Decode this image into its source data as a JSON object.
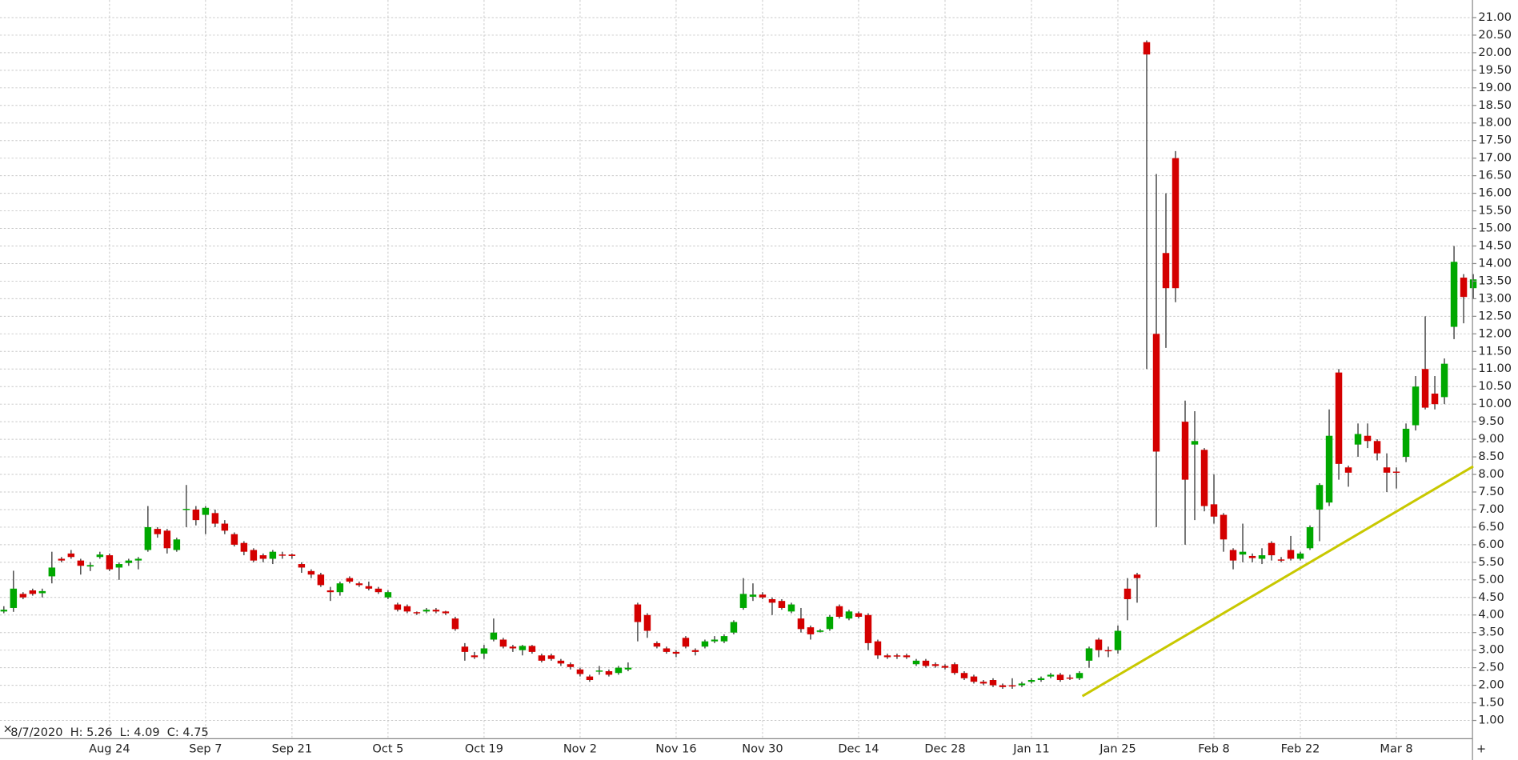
{
  "chart_data": {
    "type": "candlestick",
    "status": "8/7/2020  H: 5.26  L: 4.09  C: 4.75",
    "categories": [
      null,
      null,
      null,
      null,
      null,
      null,
      null,
      null,
      null,
      null,
      null,
      "Aug 24",
      null,
      null,
      null,
      null,
      null,
      null,
      null,
      null,
      null,
      "Sep 7",
      null,
      null,
      null,
      null,
      null,
      null,
      null,
      null,
      "Sep 21",
      null,
      null,
      null,
      null,
      null,
      null,
      null,
      null,
      null,
      "Oct 5",
      null,
      null,
      null,
      null,
      null,
      null,
      null,
      null,
      null,
      "Oct 19",
      null,
      null,
      null,
      null,
      null,
      null,
      null,
      null,
      null,
      "Nov 2",
      null,
      null,
      null,
      null,
      null,
      null,
      null,
      null,
      null,
      "Nov 16",
      null,
      null,
      null,
      null,
      null,
      null,
      null,
      null,
      "Nov 30",
      null,
      null,
      null,
      null,
      null,
      null,
      null,
      null,
      null,
      "Dec 14",
      null,
      null,
      null,
      null,
      null,
      null,
      null,
      null,
      "Dec 28",
      null,
      null,
      null,
      null,
      null,
      null,
      null,
      null,
      "Jan 11",
      null,
      null,
      null,
      null,
      null,
      null,
      null,
      null,
      "Jan 25",
      null,
      null,
      null,
      null,
      null,
      null,
      null,
      null,
      null,
      "Feb 8",
      null,
      null,
      null,
      null,
      null,
      null,
      null,
      null,
      "Feb 22",
      null,
      null,
      null,
      null,
      null,
      null,
      null,
      null,
      null,
      "Mar 8",
      null,
      null,
      null,
      null,
      null,
      null,
      null,
      null
    ],
    "open": [
      4.1,
      4.2,
      4.6,
      4.7,
      4.62,
      5.1,
      5.6,
      5.75,
      5.55,
      5.38,
      5.65,
      5.7,
      5.35,
      5.48,
      5.55,
      5.85,
      6.45,
      6.4,
      5.85,
      7.0,
      7.0,
      6.85,
      6.9,
      6.6,
      6.3,
      6.05,
      5.85,
      5.7,
      5.6,
      5.72,
      5.72,
      5.45,
      5.25,
      5.15,
      4.7,
      4.65,
      5.05,
      4.9,
      4.82,
      4.75,
      4.5,
      4.3,
      4.25,
      4.08,
      4.1,
      4.15,
      4.1,
      3.9,
      3.1,
      2.85,
      2.9,
      3.3,
      3.3,
      3.1,
      3.0,
      3.12,
      2.85,
      2.85,
      2.7,
      2.6,
      2.45,
      2.25,
      2.4,
      2.4,
      2.35,
      2.45,
      4.3,
      4.0,
      3.2,
      3.05,
      2.95,
      3.35,
      3.0,
      3.1,
      3.25,
      3.25,
      3.5,
      4.2,
      4.52,
      4.58,
      4.45,
      4.4,
      4.1,
      3.9,
      3.65,
      3.52,
      3.6,
      4.25,
      3.9,
      4.05,
      4.0,
      3.25,
      2.85,
      2.85,
      2.85,
      2.6,
      2.7,
      2.6,
      2.55,
      2.6,
      2.35,
      2.25,
      2.1,
      2.15,
      2.0,
      2.0,
      2.0,
      2.1,
      2.15,
      2.25,
      2.3,
      2.22,
      2.2,
      2.7,
      3.3,
      3.0,
      3.0,
      4.75,
      5.15,
      20.3,
      12.0,
      14.3,
      17.0,
      9.5,
      8.85,
      8.7,
      7.15,
      6.85,
      5.85,
      5.72,
      5.68,
      5.6,
      6.05,
      5.58,
      5.85,
      5.6,
      5.9,
      7.0,
      7.2,
      10.9,
      8.2,
      8.85,
      9.1,
      8.95,
      8.2,
      8.08,
      8.5,
      9.4,
      11.0,
      10.3,
      10.2,
      12.2,
      13.6,
      13.3
    ],
    "high": [
      4.25,
      5.26,
      4.65,
      4.75,
      4.75,
      5.8,
      5.65,
      5.85,
      5.6,
      5.5,
      5.8,
      5.75,
      5.5,
      5.6,
      5.65,
      7.1,
      6.5,
      6.45,
      6.2,
      7.7,
      7.1,
      7.1,
      7.0,
      6.7,
      6.35,
      6.1,
      5.9,
      5.75,
      5.85,
      5.8,
      5.75,
      5.5,
      5.3,
      5.2,
      4.8,
      4.95,
      5.1,
      4.95,
      4.95,
      4.8,
      4.7,
      4.35,
      4.3,
      4.1,
      4.2,
      4.2,
      4.12,
      3.95,
      3.2,
      2.95,
      3.15,
      3.9,
      3.35,
      3.15,
      3.15,
      3.15,
      2.9,
      2.9,
      2.75,
      2.65,
      2.5,
      2.3,
      2.55,
      2.45,
      2.55,
      2.65,
      4.35,
      4.05,
      3.25,
      3.1,
      3.0,
      3.4,
      3.05,
      3.3,
      3.4,
      3.45,
      3.85,
      5.05,
      4.9,
      4.65,
      4.5,
      4.45,
      4.35,
      4.2,
      3.7,
      3.6,
      4.0,
      4.3,
      4.15,
      4.1,
      4.05,
      3.3,
      2.9,
      2.9,
      2.9,
      2.75,
      2.75,
      2.65,
      2.6,
      2.65,
      2.4,
      2.3,
      2.15,
      2.2,
      2.05,
      2.2,
      2.1,
      2.2,
      2.25,
      2.35,
      2.35,
      2.3,
      2.4,
      3.1,
      3.35,
      3.1,
      3.7,
      5.05,
      5.2,
      20.35,
      16.55,
      16.0,
      17.2,
      10.1,
      9.8,
      8.75,
      8.0,
      6.9,
      5.9,
      6.6,
      5.75,
      5.9,
      6.1,
      5.65,
      6.25,
      5.8,
      6.55,
      7.75,
      9.85,
      11.0,
      8.25,
      9.45,
      9.45,
      9.0,
      8.6,
      8.2,
      9.45,
      10.8,
      12.5,
      10.8,
      11.3,
      14.5,
      13.7,
      13.7
    ],
    "low": [
      4.05,
      4.09,
      4.45,
      4.55,
      4.5,
      4.9,
      5.5,
      5.6,
      5.15,
      5.25,
      5.6,
      5.25,
      5.0,
      5.4,
      5.3,
      5.8,
      6.2,
      5.75,
      5.8,
      6.5,
      6.55,
      6.3,
      6.5,
      6.3,
      5.95,
      5.7,
      5.5,
      5.5,
      5.45,
      5.6,
      5.6,
      5.2,
      5.05,
      4.8,
      4.4,
      4.55,
      4.9,
      4.8,
      4.7,
      4.6,
      4.45,
      4.1,
      4.05,
      4.0,
      4.05,
      4.05,
      4.0,
      3.55,
      2.7,
      2.75,
      2.75,
      3.25,
      3.05,
      2.95,
      2.85,
      2.9,
      2.65,
      2.7,
      2.55,
      2.45,
      2.25,
      2.1,
      2.3,
      2.25,
      2.3,
      2.4,
      3.25,
      3.35,
      3.05,
      2.9,
      2.8,
      3.05,
      2.85,
      3.05,
      3.2,
      3.2,
      3.45,
      4.15,
      4.4,
      4.45,
      4.0,
      4.15,
      4.05,
      3.5,
      3.3,
      3.5,
      3.55,
      3.9,
      3.85,
      3.9,
      3.0,
      2.75,
      2.75,
      2.75,
      2.75,
      2.55,
      2.5,
      2.5,
      2.45,
      2.3,
      2.15,
      2.05,
      2.0,
      1.95,
      1.9,
      1.9,
      1.95,
      2.05,
      2.1,
      2.2,
      2.1,
      2.15,
      2.15,
      2.5,
      2.8,
      2.8,
      2.9,
      3.85,
      4.35,
      11.0,
      6.5,
      11.6,
      12.9,
      6.0,
      6.7,
      6.95,
      6.6,
      5.8,
      5.3,
      5.5,
      5.5,
      5.45,
      5.55,
      5.5,
      5.55,
      5.55,
      5.85,
      6.1,
      7.1,
      7.85,
      7.65,
      8.5,
      8.75,
      8.4,
      7.5,
      7.6,
      8.35,
      9.25,
      9.85,
      9.85,
      10.0,
      11.85,
      12.3,
      13.0
    ],
    "close": [
      4.15,
      4.75,
      4.5,
      4.6,
      4.68,
      5.35,
      5.55,
      5.65,
      5.4,
      5.42,
      5.72,
      5.3,
      5.45,
      5.55,
      5.6,
      6.5,
      6.3,
      5.9,
      6.15,
      7.02,
      6.7,
      7.05,
      6.6,
      6.4,
      6.0,
      5.8,
      5.55,
      5.6,
      5.8,
      5.7,
      5.68,
      5.35,
      5.15,
      4.85,
      4.65,
      4.9,
      4.95,
      4.85,
      4.75,
      4.65,
      4.65,
      4.15,
      4.1,
      4.05,
      4.15,
      4.1,
      4.05,
      3.6,
      2.95,
      2.8,
      3.05,
      3.5,
      3.1,
      3.05,
      3.12,
      2.95,
      2.7,
      2.75,
      2.62,
      2.52,
      2.32,
      2.15,
      2.42,
      2.3,
      2.5,
      2.5,
      3.8,
      3.55,
      3.1,
      2.95,
      2.9,
      3.1,
      2.95,
      3.25,
      3.3,
      3.4,
      3.8,
      4.6,
      4.58,
      4.5,
      4.35,
      4.2,
      4.3,
      3.6,
      3.45,
      3.56,
      3.95,
      3.95,
      4.1,
      3.95,
      3.2,
      2.85,
      2.8,
      2.82,
      2.8,
      2.7,
      2.55,
      2.55,
      2.5,
      2.35,
      2.2,
      2.1,
      2.05,
      2.0,
      1.95,
      1.98,
      2.05,
      2.15,
      2.2,
      2.3,
      2.15,
      2.2,
      2.35,
      3.05,
      3.0,
      2.98,
      3.55,
      4.45,
      5.05,
      19.95,
      8.65,
      13.3,
      13.3,
      7.85,
      8.95,
      7.1,
      6.8,
      6.15,
      5.55,
      5.8,
      5.62,
      5.7,
      5.7,
      5.55,
      5.6,
      5.75,
      6.5,
      7.7,
      9.1,
      8.3,
      8.05,
      9.15,
      8.95,
      8.6,
      8.05,
      8.05,
      9.3,
      10.5,
      9.9,
      10.0,
      11.15,
      14.05,
      13.05,
      13.55
    ],
    "up_color": "#00a800",
    "down_color": "#d40000",
    "trendline": {
      "color": "#c8c800",
      "x": [
        112.3,
        153
      ],
      "values": [
        1.69,
        8.23
      ]
    },
    "ylim": [
      0.48,
      21.5
    ],
    "yticks": [
      {
        "value": 1,
        "label": "1.00"
      },
      {
        "value": 1.5,
        "label": "1.50"
      },
      {
        "value": 2,
        "label": "2.00"
      },
      {
        "value": 2.5,
        "label": "2.50"
      },
      {
        "value": 3,
        "label": "3.00"
      },
      {
        "value": 3.5,
        "label": "3.50"
      },
      {
        "value": 4,
        "label": "4.00"
      },
      {
        "value": 4.5,
        "label": "4.50"
      },
      {
        "value": 5,
        "label": "5.00"
      },
      {
        "value": 5.5,
        "label": "5.50"
      },
      {
        "value": 6,
        "label": "6.00"
      },
      {
        "value": 6.5,
        "label": "6.50"
      },
      {
        "value": 7,
        "label": "7.00"
      },
      {
        "value": 7.5,
        "label": "7.50"
      },
      {
        "value": 8,
        "label": "8.00"
      },
      {
        "value": 8.5,
        "label": "8.50"
      },
      {
        "value": 9,
        "label": "9.00"
      },
      {
        "value": 9.5,
        "label": "9.50"
      },
      {
        "value": 10,
        "label": "10.00"
      },
      {
        "value": 10.5,
        "label": "10.50"
      },
      {
        "value": 11,
        "label": "11.00"
      },
      {
        "value": 11.5,
        "label": "11.50"
      },
      {
        "value": 12,
        "label": "12.00"
      },
      {
        "value": 12.5,
        "label": "12.50"
      },
      {
        "value": 13,
        "label": "13.00"
      },
      {
        "value": 13.5,
        "label": "13.50"
      },
      {
        "value": 14,
        "label": "14.00"
      },
      {
        "value": 14.5,
        "label": "14.50"
      },
      {
        "value": 15,
        "label": "15.00"
      },
      {
        "value": 15.5,
        "label": "15.50"
      },
      {
        "value": 16,
        "label": "16.00"
      },
      {
        "value": 16.5,
        "label": "16.50"
      },
      {
        "value": 17,
        "label": "17.00"
      },
      {
        "value": 17.5,
        "label": "17.50"
      },
      {
        "value": 18,
        "label": "18.00"
      },
      {
        "value": 18.5,
        "label": "18.50"
      },
      {
        "value": 19,
        "label": "19.00"
      },
      {
        "value": 19.5,
        "label": "19.50"
      },
      {
        "value": 20,
        "label": "20.00"
      },
      {
        "value": 20.5,
        "label": "20.50"
      },
      {
        "value": 21,
        "label": "21.00"
      }
    ],
    "grid": true
  }
}
